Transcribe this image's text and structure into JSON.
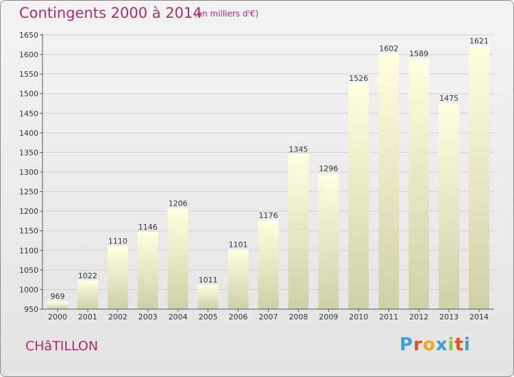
{
  "header": {
    "title": "Contingents 2000 à 2014",
    "unit": "(en milliers d'€)"
  },
  "footer": {
    "city": "CHâTILLON",
    "logo_letters": [
      "P",
      "r",
      "o",
      "x",
      "i",
      "t",
      "i"
    ],
    "logo_colors": [
      "#3aa0dc",
      "#e94e1b",
      "#f5a623",
      "#3aa0dc",
      "#8bc53f",
      "#e94e1b",
      "#3aa0dc"
    ]
  },
  "chart_data": {
    "type": "bar",
    "title": "Contingents 2000 à 2014",
    "subtitle": "(en milliers d'€)",
    "categories": [
      "2000",
      "2001",
      "2002",
      "2003",
      "2004",
      "2005",
      "2006",
      "2007",
      "2008",
      "2009",
      "2010",
      "2011",
      "2012",
      "2013",
      "2014"
    ],
    "values": [
      969,
      1022,
      1110,
      1146,
      1206,
      1011,
      1101,
      1176,
      1345,
      1296,
      1526,
      1602,
      1589,
      1475,
      1621
    ],
    "ylim": [
      950,
      1650
    ],
    "yticks": [
      950,
      1000,
      1050,
      1100,
      1150,
      1200,
      1250,
      1300,
      1350,
      1400,
      1450,
      1500,
      1550,
      1600,
      1650
    ],
    "grid": true,
    "bar_color_top": "#ffffe0",
    "bar_color_bottom": "#cfcfa8"
  }
}
